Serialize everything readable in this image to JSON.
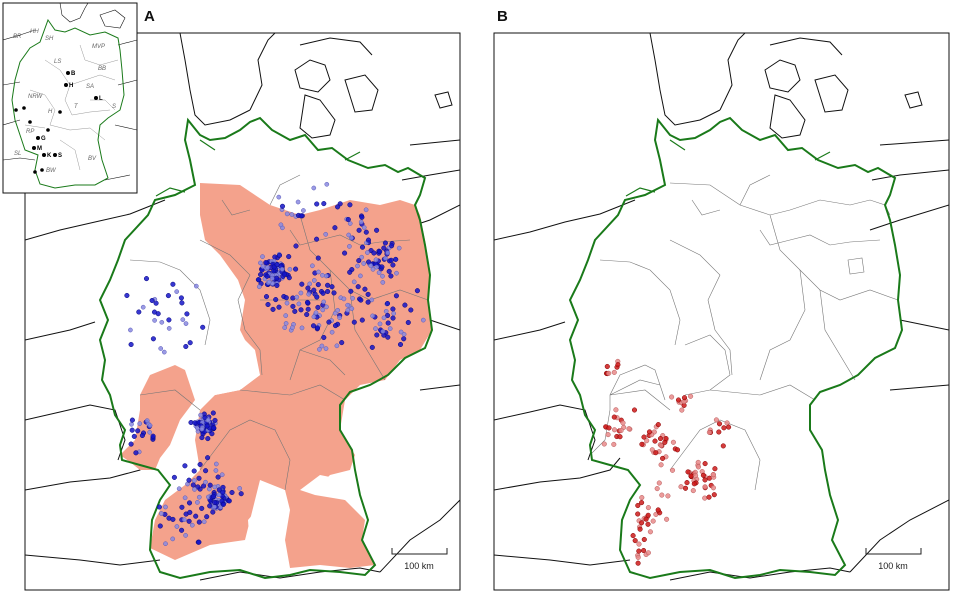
{
  "figure": {
    "panels": [
      {
        "label": "A",
        "scale_label": "100 km"
      },
      {
        "label": "B",
        "scale_label": "100 km"
      }
    ],
    "colors": {
      "border": "#1a7a1a",
      "states_shaded": "#f4a28c",
      "points_a_dark": "#1414c8",
      "points_a_light": "#8a8ae0",
      "points_b_dark": "#cc1a1a",
      "points_b_light": "#e88a8a",
      "neighbors": "#111111",
      "state_lines": "#888888"
    }
  },
  "inset": {
    "state_labels": [
      "BR",
      "HH",
      "SH",
      "MVP",
      "LS",
      "BB",
      "NRW",
      "SA",
      "S",
      "T",
      "H",
      "RP",
      "SL",
      "BV",
      "BW"
    ],
    "city_labels": [
      "B",
      "H",
      "L",
      "G",
      "M",
      "K",
      "S"
    ]
  }
}
